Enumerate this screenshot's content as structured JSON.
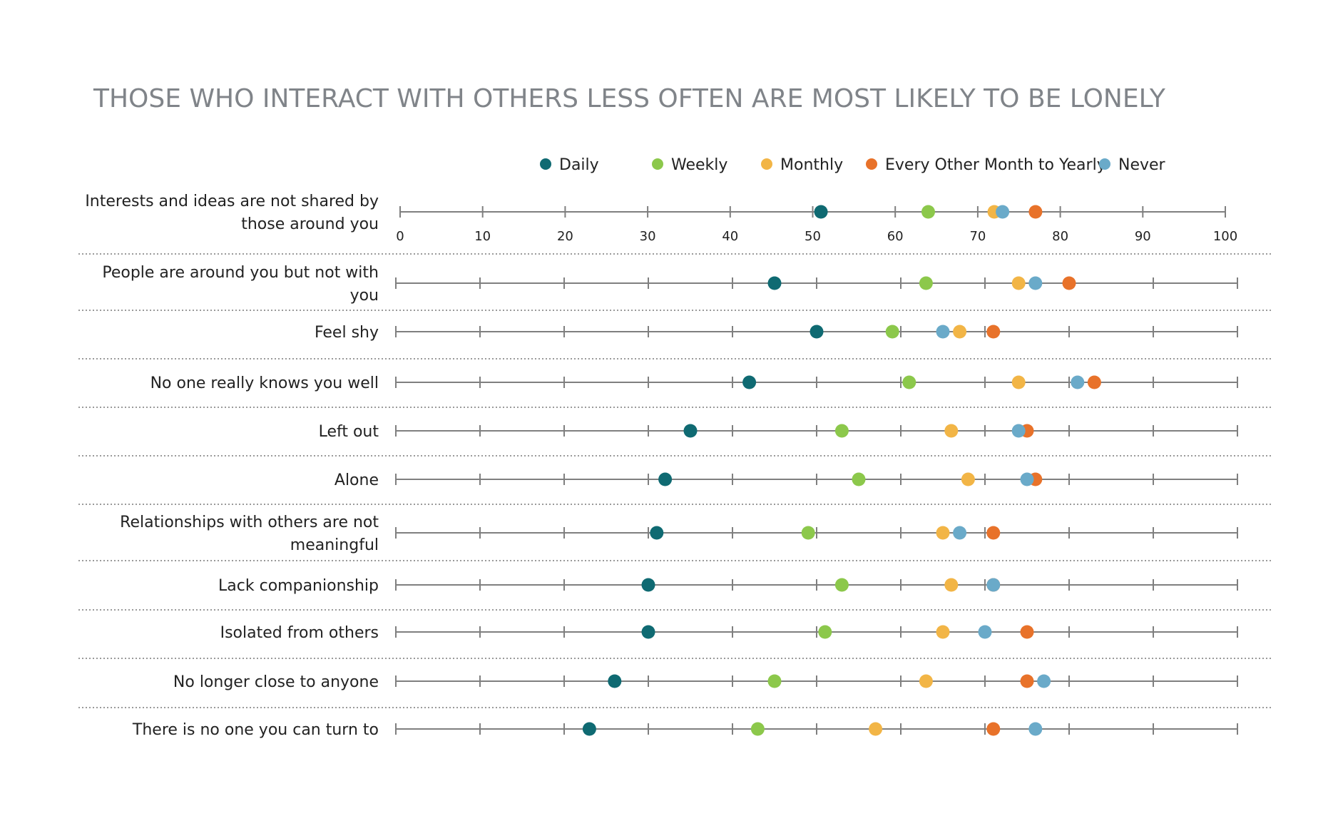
{
  "chart_data": {
    "type": "scatter",
    "title": "THOSE WHO INTERACT WITH OTHERS LESS OFTEN ARE MOST LIKELY TO BE LONELY",
    "xlim": [
      0,
      100
    ],
    "x_ticks": [
      0,
      10,
      20,
      30,
      40,
      50,
      60,
      70,
      80,
      90,
      100
    ],
    "legend_position": "top",
    "series": [
      {
        "name": "Daily",
        "color": "#0f6a72"
      },
      {
        "name": "Weekly",
        "color": "#8cc84b"
      },
      {
        "name": "Monthly",
        "color": "#f2b546"
      },
      {
        "name": "Every Other Month to Yearly",
        "color": "#e8722a"
      },
      {
        "name": "Never",
        "color": "#6aaac9"
      }
    ],
    "categories": [
      {
        "label": [
          "Interests and ideas are not shared by",
          "those around you"
        ],
        "values": [
          51,
          64,
          72,
          77,
          73
        ]
      },
      {
        "label": [
          "People are around you but not with",
          "you"
        ],
        "values": [
          45,
          63,
          74,
          80,
          76
        ]
      },
      {
        "label": [
          "Feel shy"
        ],
        "values": [
          50,
          59,
          67,
          71,
          65
        ]
      },
      {
        "label": [
          "No one really knows you well"
        ],
        "values": [
          42,
          61,
          74,
          83,
          81
        ]
      },
      {
        "label": [
          "Left out"
        ],
        "values": [
          35,
          53,
          66,
          75,
          74
        ]
      },
      {
        "label": [
          "Alone"
        ],
        "values": [
          32,
          55,
          68,
          76,
          75
        ]
      },
      {
        "label": [
          "Relationships with others are not",
          "meaningful"
        ],
        "values": [
          31,
          49,
          65,
          71,
          67
        ]
      },
      {
        "label": [
          "Lack companionship"
        ],
        "values": [
          30,
          53,
          66,
          71,
          71
        ]
      },
      {
        "label": [
          "Isolated from others"
        ],
        "values": [
          30,
          51,
          65,
          75,
          70
        ]
      },
      {
        "label": [
          "No longer close to anyone"
        ],
        "values": [
          26,
          45,
          63,
          75,
          77
        ]
      },
      {
        "label": [
          "There is no one you can turn to"
        ],
        "values": [
          23,
          43,
          57,
          71,
          76
        ]
      }
    ]
  }
}
